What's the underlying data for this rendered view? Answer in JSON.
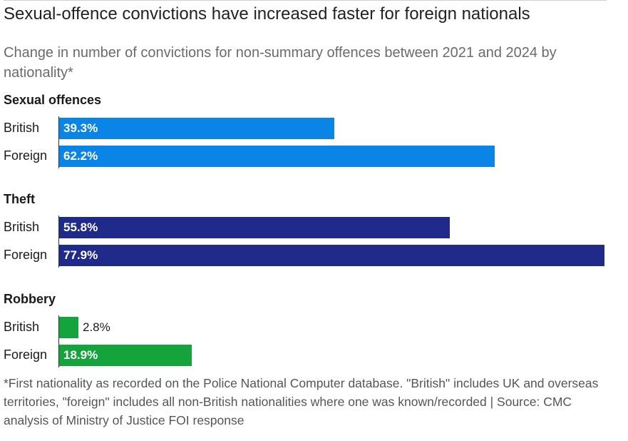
{
  "title": "Sexual-offence convictions have increased faster for foreign nationals",
  "subtitle": "Change in number of convictions for non-summary offences between 2021 and 2024 by nationality*",
  "footnote": "*First nationality as recorded on the Police National Computer database. \"British\" includes UK and overseas territories, \"foreign\" includes all non-British nationalities where one was known/recorded | Source: CMC analysis of Ministry of Justice FOI response",
  "chart_data": {
    "type": "bar",
    "orientation": "horizontal",
    "unit": "%",
    "xlim": [
      0,
      80
    ],
    "groups": [
      {
        "name": "Sexual offences",
        "color": "#0a84e6",
        "bars": [
          {
            "label": "British",
            "value": 39.3,
            "text": "39.3%"
          },
          {
            "label": "Foreign",
            "value": 62.2,
            "text": "62.2%"
          }
        ]
      },
      {
        "name": "Theft",
        "color": "#1f2a8a",
        "bars": [
          {
            "label": "British",
            "value": 55.8,
            "text": "55.8%"
          },
          {
            "label": "Foreign",
            "value": 77.9,
            "text": "77.9%"
          }
        ]
      },
      {
        "name": "Robbery",
        "color": "#15a33b",
        "bars": [
          {
            "label": "British",
            "value": 2.8,
            "text": "2.8%"
          },
          {
            "label": "Foreign",
            "value": 18.9,
            "text": "18.9%"
          }
        ]
      }
    ]
  }
}
